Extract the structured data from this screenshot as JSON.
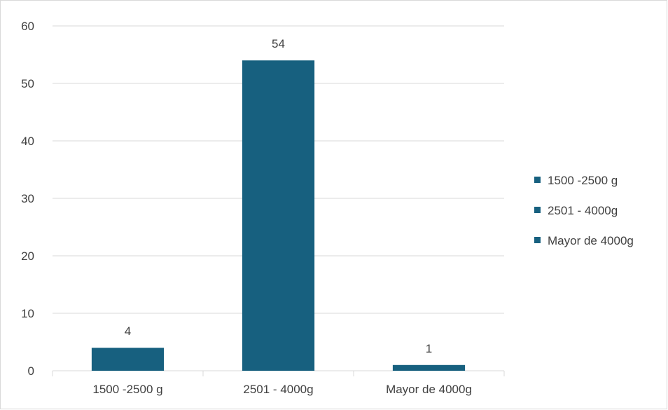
{
  "chart_data": {
    "type": "bar",
    "categories": [
      "1500 -2500 g",
      "2501 - 4000g",
      "Mayor de 4000g"
    ],
    "values": [
      4,
      54,
      1
    ],
    "data_labels": [
      "4",
      "54",
      "1"
    ],
    "title": "",
    "xlabel": "",
    "ylabel": "",
    "ylim": [
      0,
      60
    ],
    "yticks": [
      0,
      10,
      20,
      30,
      40,
      50,
      60
    ],
    "grid": true,
    "legend": {
      "placement": "right",
      "entries": [
        "1500 -2500 g",
        "2501 - 4000g",
        "Mayor de 4000g"
      ]
    },
    "colors": {
      "bar": "#17607f",
      "grid": "#d9d9d9",
      "text": "#404040"
    }
  }
}
